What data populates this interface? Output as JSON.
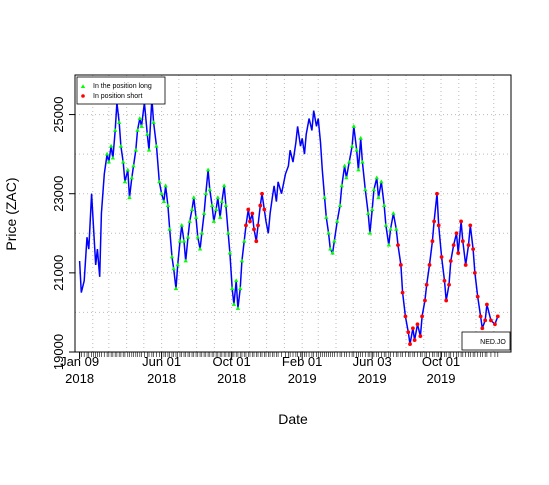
{
  "chart_data": {
    "type": "line",
    "xlabel": "Date",
    "ylabel": "Price (ZAC)",
    "ylim": [
      19000,
      26000
    ],
    "yticks": [
      19000,
      21000,
      23000,
      25000
    ],
    "xlim": [
      "2018-01-01",
      "2020-01-31"
    ],
    "x_ticks": [
      {
        "date": "2018-01-09",
        "line1": "Jan 09",
        "line2": "2018"
      },
      {
        "date": "2018-06-01",
        "line1": "Jun 01",
        "line2": "2018"
      },
      {
        "date": "2018-10-01",
        "line1": "Oct 01",
        "line2": "2018"
      },
      {
        "date": "2019-02-01",
        "line1": "Feb 01",
        "line2": "2019"
      },
      {
        "date": "2019-06-03",
        "line1": "Jun 03",
        "line2": "2019"
      },
      {
        "date": "2019-10-01",
        "line1": "Oct 01",
        "line2": "2019"
      }
    ],
    "grid": true,
    "legend_position": "top-left",
    "ticker_label": "NED.JO",
    "legend": [
      {
        "label": "In the position long",
        "color": "#00ff00",
        "marker": "triangle"
      },
      {
        "label": "In position short",
        "color": "#ff0000",
        "marker": "circle"
      }
    ],
    "series_color": "#0000ff",
    "points": [
      [
        "2018-01-09",
        21300,
        "n"
      ],
      [
        "2018-01-12",
        20500,
        "n"
      ],
      [
        "2018-01-17",
        20800,
        "n"
      ],
      [
        "2018-01-22",
        21900,
        "n"
      ],
      [
        "2018-01-25",
        21600,
        "n"
      ],
      [
        "2018-01-30",
        23000,
        "n"
      ],
      [
        "2018-02-02",
        22200,
        "n"
      ],
      [
        "2018-02-06",
        21200,
        "n"
      ],
      [
        "2018-02-09",
        21600,
        "n"
      ],
      [
        "2018-02-13",
        20900,
        "n"
      ],
      [
        "2018-02-16",
        22500,
        "n"
      ],
      [
        "2018-02-21",
        23500,
        "n"
      ],
      [
        "2018-02-26",
        24000,
        "L"
      ],
      [
        "2018-03-01",
        23800,
        "L"
      ],
      [
        "2018-03-05",
        24200,
        "L"
      ],
      [
        "2018-03-08",
        23900,
        "L"
      ],
      [
        "2018-03-12",
        24600,
        "L"
      ],
      [
        "2018-03-15",
        25300,
        "L"
      ],
      [
        "2018-03-19",
        24800,
        "L"
      ],
      [
        "2018-03-22",
        24200,
        "L"
      ],
      [
        "2018-03-26",
        23800,
        "L"
      ],
      [
        "2018-03-29",
        23300,
        "L"
      ],
      [
        "2018-04-03",
        23600,
        "L"
      ],
      [
        "2018-04-06",
        22900,
        "L"
      ],
      [
        "2018-04-10",
        23400,
        "L"
      ],
      [
        "2018-04-13",
        23700,
        "L"
      ],
      [
        "2018-04-17",
        24100,
        "L"
      ],
      [
        "2018-04-20",
        24600,
        "L"
      ],
      [
        "2018-04-24",
        24900,
        "L"
      ],
      [
        "2018-04-27",
        24700,
        "L"
      ],
      [
        "2018-05-02",
        25300,
        "L"
      ],
      [
        "2018-05-07",
        24500,
        "L"
      ],
      [
        "2018-05-10",
        24100,
        "L"
      ],
      [
        "2018-05-15",
        25400,
        "L"
      ],
      [
        "2018-05-18",
        24800,
        "L"
      ],
      [
        "2018-05-23",
        24200,
        "L"
      ],
      [
        "2018-05-28",
        23300,
        "L"
      ],
      [
        "2018-06-01",
        23000,
        "L"
      ],
      [
        "2018-06-05",
        22800,
        "L"
      ],
      [
        "2018-06-08",
        23200,
        "L"
      ],
      [
        "2018-06-12",
        22700,
        "L"
      ],
      [
        "2018-06-15",
        22100,
        "L"
      ],
      [
        "2018-06-19",
        21400,
        "L"
      ],
      [
        "2018-06-22",
        21100,
        "L"
      ],
      [
        "2018-06-26",
        20600,
        "L"
      ],
      [
        "2018-06-29",
        21200,
        "L"
      ],
      [
        "2018-07-03",
        21800,
        "L"
      ],
      [
        "2018-07-06",
        22200,
        "L"
      ],
      [
        "2018-07-10",
        21800,
        "L"
      ],
      [
        "2018-07-13",
        21300,
        "L"
      ],
      [
        "2018-07-17",
        21900,
        "L"
      ],
      [
        "2018-07-20",
        22300,
        "L"
      ],
      [
        "2018-07-24",
        22600,
        "L"
      ],
      [
        "2018-07-27",
        22900,
        "L"
      ],
      [
        "2018-07-31",
        22400,
        "L"
      ],
      [
        "2018-08-03",
        21900,
        "L"
      ],
      [
        "2018-08-07",
        21600,
        "L"
      ],
      [
        "2018-08-10",
        22000,
        "L"
      ],
      [
        "2018-08-14",
        22500,
        "L"
      ],
      [
        "2018-08-17",
        23000,
        "L"
      ],
      [
        "2018-08-21",
        23600,
        "L"
      ],
      [
        "2018-08-24",
        23100,
        "L"
      ],
      [
        "2018-08-28",
        22700,
        "L"
      ],
      [
        "2018-08-31",
        22300,
        "L"
      ],
      [
        "2018-09-04",
        22600,
        "L"
      ],
      [
        "2018-09-07",
        22900,
        "L"
      ],
      [
        "2018-09-11",
        22400,
        "L"
      ],
      [
        "2018-09-14",
        22800,
        "L"
      ],
      [
        "2018-09-18",
        23200,
        "L"
      ],
      [
        "2018-09-21",
        22700,
        "L"
      ],
      [
        "2018-09-25",
        22000,
        "L"
      ],
      [
        "2018-09-28",
        21500,
        "L"
      ],
      [
        "2018-10-02",
        20600,
        "L"
      ],
      [
        "2018-10-05",
        20200,
        "L"
      ],
      [
        "2018-10-09",
        20800,
        "L"
      ],
      [
        "2018-10-12",
        20100,
        "L"
      ],
      [
        "2018-10-16",
        20600,
        "L"
      ],
      [
        "2018-10-19",
        21300,
        "L"
      ],
      [
        "2018-10-23",
        21800,
        "L"
      ],
      [
        "2018-10-26",
        22200,
        "S"
      ],
      [
        "2018-10-30",
        22600,
        "S"
      ],
      [
        "2018-11-02",
        22300,
        "S"
      ],
      [
        "2018-11-06",
        22500,
        "S"
      ],
      [
        "2018-11-09",
        22100,
        "S"
      ],
      [
        "2018-11-13",
        21800,
        "S"
      ],
      [
        "2018-11-16",
        22200,
        "S"
      ],
      [
        "2018-11-20",
        22700,
        "S"
      ],
      [
        "2018-11-23",
        23000,
        "S"
      ],
      [
        "2018-11-27",
        22600,
        "S"
      ],
      [
        "2018-11-30",
        22300,
        "n"
      ],
      [
        "2018-12-04",
        22000,
        "n"
      ],
      [
        "2018-12-07",
        22500,
        "n"
      ],
      [
        "2018-12-11",
        22900,
        "n"
      ],
      [
        "2018-12-14",
        23200,
        "n"
      ],
      [
        "2018-12-18",
        22800,
        "n"
      ],
      [
        "2018-12-21",
        23300,
        "n"
      ],
      [
        "2018-12-27",
        23000,
        "n"
      ],
      [
        "2019-01-03",
        23500,
        "n"
      ],
      [
        "2019-01-08",
        23700,
        "n"
      ],
      [
        "2019-01-11",
        24100,
        "n"
      ],
      [
        "2019-01-16",
        23800,
        "n"
      ],
      [
        "2019-01-21",
        24300,
        "n"
      ],
      [
        "2019-01-24",
        24700,
        "n"
      ],
      [
        "2019-01-29",
        24200,
        "n"
      ],
      [
        "2019-02-01",
        24400,
        "n"
      ],
      [
        "2019-02-05",
        24000,
        "n"
      ],
      [
        "2019-02-08",
        24500,
        "n"
      ],
      [
        "2019-02-13",
        24900,
        "n"
      ],
      [
        "2019-02-18",
        24600,
        "n"
      ],
      [
        "2019-02-21",
        25100,
        "n"
      ],
      [
        "2019-02-26",
        24700,
        "n"
      ],
      [
        "2019-03-01",
        24900,
        "n"
      ],
      [
        "2019-03-05",
        24300,
        "n"
      ],
      [
        "2019-03-08",
        23600,
        "n"
      ],
      [
        "2019-03-12",
        22900,
        "L"
      ],
      [
        "2019-03-15",
        22400,
        "L"
      ],
      [
        "2019-03-19",
        22000,
        "L"
      ],
      [
        "2019-03-22",
        21600,
        "L"
      ],
      [
        "2019-03-26",
        21500,
        "L"
      ],
      [
        "2019-03-29",
        21800,
        "L"
      ],
      [
        "2019-04-03",
        22300,
        "L"
      ],
      [
        "2019-04-08",
        22700,
        "L"
      ],
      [
        "2019-04-11",
        23200,
        "L"
      ],
      [
        "2019-04-16",
        23700,
        "L"
      ],
      [
        "2019-04-19",
        23400,
        "L"
      ],
      [
        "2019-04-24",
        23800,
        "L"
      ],
      [
        "2019-04-29",
        24200,
        "L"
      ],
      [
        "2019-05-02",
        24700,
        "L"
      ],
      [
        "2019-05-07",
        24100,
        "L"
      ],
      [
        "2019-05-10",
        23600,
        "L"
      ],
      [
        "2019-05-14",
        24400,
        "L"
      ],
      [
        "2019-05-17",
        23800,
        "L"
      ],
      [
        "2019-05-22",
        23100,
        "L"
      ],
      [
        "2019-05-27",
        22500,
        "L"
      ],
      [
        "2019-05-30",
        22000,
        "L"
      ],
      [
        "2019-06-03",
        22600,
        "L"
      ],
      [
        "2019-06-06",
        23100,
        "L"
      ],
      [
        "2019-06-11",
        23400,
        "L"
      ],
      [
        "2019-06-14",
        22900,
        "L"
      ],
      [
        "2019-06-19",
        23300,
        "L"
      ],
      [
        "2019-06-24",
        22700,
        "L"
      ],
      [
        "2019-06-27",
        22200,
        "L"
      ],
      [
        "2019-07-02",
        21700,
        "L"
      ],
      [
        "2019-07-05",
        22100,
        "L"
      ],
      [
        "2019-07-10",
        22500,
        "L"
      ],
      [
        "2019-07-15",
        22100,
        "L"
      ],
      [
        "2019-07-18",
        21700,
        "S"
      ],
      [
        "2019-07-23",
        21200,
        "S"
      ],
      [
        "2019-07-26",
        20500,
        "S"
      ],
      [
        "2019-07-31",
        19900,
        "S"
      ],
      [
        "2019-08-05",
        19500,
        "S"
      ],
      [
        "2019-08-08",
        19200,
        "S"
      ],
      [
        "2019-08-13",
        19600,
        "S"
      ],
      [
        "2019-08-16",
        19300,
        "S"
      ],
      [
        "2019-08-21",
        19700,
        "S"
      ],
      [
        "2019-08-26",
        19400,
        "S"
      ],
      [
        "2019-08-29",
        19900,
        "S"
      ],
      [
        "2019-09-03",
        20300,
        "S"
      ],
      [
        "2019-09-06",
        20700,
        "S"
      ],
      [
        "2019-09-11",
        21200,
        "S"
      ],
      [
        "2019-09-16",
        21800,
        "S"
      ],
      [
        "2019-09-19",
        22300,
        "S"
      ],
      [
        "2019-09-24",
        23000,
        "S"
      ],
      [
        "2019-09-27",
        22200,
        "S"
      ],
      [
        "2019-10-02",
        21400,
        "S"
      ],
      [
        "2019-10-07",
        20800,
        "S"
      ],
      [
        "2019-10-10",
        20300,
        "S"
      ],
      [
        "2019-10-15",
        20700,
        "S"
      ],
      [
        "2019-10-18",
        21300,
        "S"
      ],
      [
        "2019-10-23",
        21700,
        "S"
      ],
      [
        "2019-10-28",
        22000,
        "S"
      ],
      [
        "2019-10-31",
        21500,
        "S"
      ],
      [
        "2019-11-05",
        22300,
        "S"
      ],
      [
        "2019-11-08",
        21800,
        "S"
      ],
      [
        "2019-11-13",
        21200,
        "S"
      ],
      [
        "2019-11-18",
        21700,
        "S"
      ],
      [
        "2019-11-21",
        22200,
        "S"
      ],
      [
        "2019-11-26",
        21600,
        "S"
      ],
      [
        "2019-11-29",
        21000,
        "S"
      ],
      [
        "2019-12-04",
        20400,
        "S"
      ],
      [
        "2019-12-09",
        19900,
        "S"
      ],
      [
        "2019-12-12",
        19600,
        "S"
      ],
      [
        "2019-12-17",
        19800,
        "S"
      ],
      [
        "2019-12-20",
        20200,
        "S"
      ],
      [
        "2019-12-27",
        19800,
        "S"
      ],
      [
        "2020-01-03",
        19700,
        "S"
      ],
      [
        "2020-01-08",
        19900,
        "S"
      ]
    ]
  }
}
